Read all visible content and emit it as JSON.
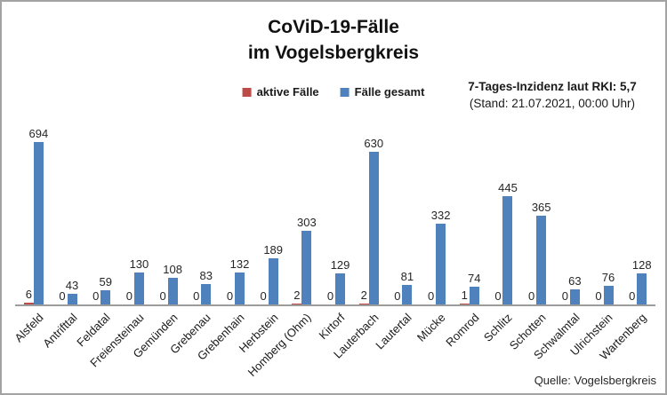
{
  "title": {
    "line1": "CoViD-19-Fälle",
    "line2": "im Vogelsbergkreis"
  },
  "legend": {
    "items": [
      {
        "label": "aktive Fälle",
        "color": "#BE4B48"
      },
      {
        "label": "Fälle gesamt",
        "color": "#4F81BD"
      }
    ]
  },
  "incidence": {
    "line1": "7-Tages-Inzidenz laut RKI: 5,7",
    "line2": "(Stand: 21.07.2021, 00:00 Uhr)"
  },
  "source": "Quelle: Vogelsbergkreis",
  "colors": {
    "active": "#BE4B48",
    "total": "#4F81BD",
    "axis": "#9C9C9C"
  },
  "chart_data": {
    "type": "bar",
    "title": "CoViD-19-Fälle im Vogelsbergkreis",
    "xlabel": "",
    "ylabel": "",
    "ylim": [
      0,
      694
    ],
    "grid": false,
    "legend_position": "top-center",
    "data_labels": true,
    "categories": [
      "Alsfeld",
      "Antrifttal",
      "Feldatal",
      "Freiensteinau",
      "Gemünden",
      "Grebenau",
      "Grebenhain",
      "Herbstein",
      "Homberg (Ohm)",
      "Kirtorf",
      "Lauterbach",
      "Lautertal",
      "Mücke",
      "Romrod",
      "Schlitz",
      "Schotten",
      "Schwalmtal",
      "Ulrichstein",
      "Wartenberg"
    ],
    "series": [
      {
        "name": "aktive Fälle",
        "color": "#BE4B48",
        "values": [
          6,
          0,
          0,
          0,
          0,
          0,
          0,
          0,
          2,
          0,
          2,
          0,
          0,
          1,
          0,
          0,
          0,
          0,
          0
        ]
      },
      {
        "name": "Fälle gesamt",
        "color": "#4F81BD",
        "values": [
          694,
          43,
          59,
          130,
          108,
          83,
          132,
          189,
          303,
          129,
          630,
          81,
          332,
          74,
          445,
          365,
          63,
          76,
          128
        ]
      }
    ]
  }
}
